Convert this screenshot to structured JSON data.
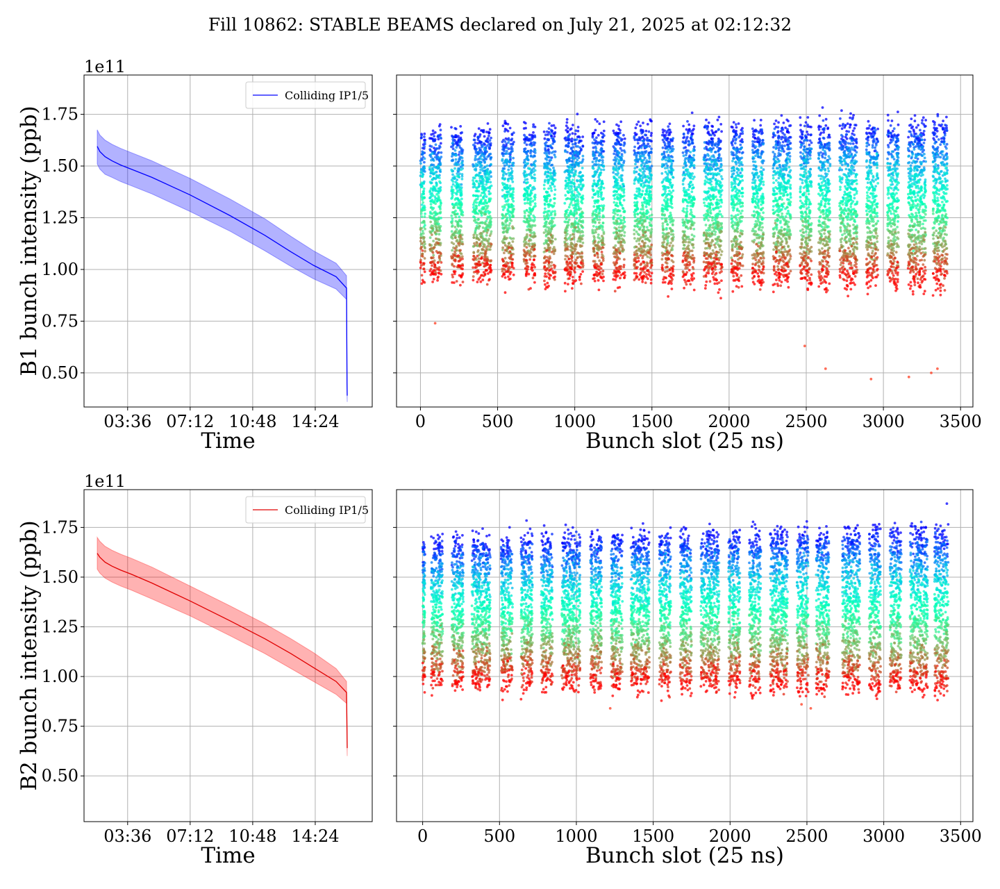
{
  "figure": {
    "title": "Fill 10862: STABLE BEAMS declared on July 21, 2025 at 02:12:32"
  },
  "chart_data": [
    {
      "id": "b1_time",
      "type": "line",
      "title": "",
      "xlabel": "Time",
      "ylabel": "B1 bunch intensity (ppb)",
      "y_offset_label": "1e11",
      "x_unit": "hours since 00:00 on July 21, 2025",
      "xlim": [
        1.09,
        17.68
      ],
      "ylim": [
        0.335,
        1.94
      ],
      "xticks": [
        3.6,
        7.2,
        10.8,
        14.4
      ],
      "xticklabels": [
        "03:36",
        "07:12",
        "10:48",
        "14:24"
      ],
      "yticks": [
        0.5,
        0.75,
        1.0,
        1.25,
        1.5,
        1.75
      ],
      "yticklabels": [
        "0.50",
        "0.75",
        "1.00",
        "1.25",
        "1.50",
        "1.75"
      ],
      "grid": true,
      "legend": {
        "position": "upper right",
        "entries": [
          "Colliding IP1/5"
        ]
      },
      "series": [
        {
          "name": "Colliding IP1/5",
          "color": "#0000ff",
          "band_color": "#0000ff",
          "band_opacity": 0.3,
          "x": [
            1.85,
            2.0,
            2.3,
            2.7,
            3.2,
            3.8,
            5.0,
            7.2,
            9.5,
            11.5,
            13.0,
            14.3,
            15.6,
            16.2,
            16.23,
            16.24
          ],
          "mean": [
            1.595,
            1.57,
            1.545,
            1.525,
            1.505,
            1.485,
            1.445,
            1.36,
            1.26,
            1.165,
            1.085,
            1.02,
            0.965,
            0.91,
            0.45,
            0.39
          ],
          "lower": [
            1.51,
            1.485,
            1.46,
            1.445,
            1.425,
            1.405,
            1.365,
            1.28,
            1.185,
            1.09,
            1.015,
            0.955,
            0.905,
            0.855,
            0.4,
            0.36
          ],
          "upper": [
            1.675,
            1.65,
            1.625,
            1.605,
            1.585,
            1.565,
            1.525,
            1.44,
            1.34,
            1.245,
            1.16,
            1.09,
            1.03,
            0.97,
            0.55,
            0.43
          ]
        }
      ]
    },
    {
      "id": "b1_slots",
      "type": "scatter",
      "title": "",
      "xlabel": "Bunch slot (25 ns)",
      "ylabel": "",
      "xlim": [
        -155,
        3580
      ],
      "ylim": [
        0.335,
        1.94
      ],
      "xticks": [
        0,
        500,
        1000,
        1500,
        2000,
        2500,
        3000,
        3500
      ],
      "xticklabels": [
        "0",
        "500",
        "1000",
        "1500",
        "2000",
        "2500",
        "3000",
        "3500"
      ],
      "yticks": [
        0.5,
        0.75,
        1.0,
        1.25,
        1.5,
        1.75
      ],
      "grid": true,
      "colormap": "rainbow",
      "color_encodes": "time (early = violet, late = red)",
      "trains": [
        [
          0,
          30
        ],
        [
          60,
          135
        ],
        [
          200,
          275
        ],
        [
          340,
          460
        ],
        [
          530,
          605
        ],
        [
          670,
          745
        ],
        [
          800,
          875
        ],
        [
          935,
          1055
        ],
        [
          1115,
          1190
        ],
        [
          1250,
          1325
        ],
        [
          1385,
          1500
        ],
        [
          1565,
          1640
        ],
        [
          1700,
          1775
        ],
        [
          1835,
          1955
        ],
        [
          2015,
          2090
        ],
        [
          2150,
          2225
        ],
        [
          2285,
          2400
        ],
        [
          2460,
          2535
        ],
        [
          2580,
          2655
        ],
        [
          2715,
          2830
        ],
        [
          2890,
          2965
        ],
        [
          3025,
          3100
        ],
        [
          3160,
          3275
        ],
        [
          3320,
          3415
        ]
      ],
      "band_top": [
        1.64,
        1.68
      ],
      "band_bottom": [
        0.98,
        0.95
      ],
      "outliers": [
        [
          95,
          0.74
        ],
        [
          2490,
          0.63
        ],
        [
          2625,
          0.52
        ],
        [
          2920,
          0.47
        ],
        [
          3165,
          0.48
        ],
        [
          3310,
          0.5
        ],
        [
          3350,
          0.52
        ]
      ]
    },
    {
      "id": "b2_time",
      "type": "line",
      "title": "",
      "xlabel": "Time",
      "ylabel": "B2 bunch intensity (ppb)",
      "y_offset_label": "1e11",
      "x_unit": "hours since 00:00 on July 21, 2025",
      "xlim": [
        1.09,
        17.68
      ],
      "ylim": [
        0.27,
        1.94
      ],
      "xticks": [
        3.6,
        7.2,
        10.8,
        14.4
      ],
      "xticklabels": [
        "03:36",
        "07:12",
        "10:48",
        "14:24"
      ],
      "yticks": [
        0.5,
        0.75,
        1.0,
        1.25,
        1.5,
        1.75
      ],
      "yticklabels": [
        "0.50",
        "0.75",
        "1.00",
        "1.25",
        "1.50",
        "1.75"
      ],
      "grid": true,
      "legend": {
        "position": "upper right",
        "entries": [
          "Colliding IP1/5"
        ]
      },
      "series": [
        {
          "name": "Colliding IP1/5",
          "color": "#e00000",
          "band_color": "#ff0000",
          "band_opacity": 0.3,
          "x": [
            1.85,
            2.0,
            2.3,
            2.7,
            3.2,
            3.8,
            5.0,
            7.2,
            9.5,
            11.5,
            13.0,
            14.3,
            15.6,
            16.2,
            16.23,
            16.24
          ],
          "mean": [
            1.62,
            1.6,
            1.575,
            1.555,
            1.535,
            1.515,
            1.47,
            1.38,
            1.28,
            1.19,
            1.115,
            1.045,
            0.975,
            0.92,
            0.72,
            0.64
          ],
          "lower": [
            1.54,
            1.52,
            1.495,
            1.475,
            1.455,
            1.435,
            1.39,
            1.305,
            1.205,
            1.115,
            1.04,
            0.975,
            0.91,
            0.865,
            0.65,
            0.6
          ],
          "upper": [
            1.7,
            1.68,
            1.655,
            1.635,
            1.615,
            1.595,
            1.55,
            1.455,
            1.355,
            1.265,
            1.19,
            1.12,
            1.04,
            0.975,
            0.8,
            0.68
          ]
        }
      ]
    },
    {
      "id": "b2_slots",
      "type": "scatter",
      "title": "",
      "xlabel": "Bunch slot (25 ns)",
      "ylabel": "",
      "xlim": [
        -170,
        3580
      ],
      "ylim": [
        0.27,
        1.94
      ],
      "xticks": [
        0,
        500,
        1000,
        1500,
        2000,
        2500,
        3000,
        3500
      ],
      "xticklabels": [
        "0",
        "500",
        "1000",
        "1500",
        "2000",
        "2500",
        "3000",
        "3500"
      ],
      "yticks": [
        0.5,
        0.75,
        1.0,
        1.25,
        1.5,
        1.75
      ],
      "grid": true,
      "colormap": "rainbow",
      "color_encodes": "time (early = violet, late = red)",
      "trains": [
        [
          0,
          15
        ],
        [
          55,
          130
        ],
        [
          190,
          265
        ],
        [
          320,
          440
        ],
        [
          510,
          585
        ],
        [
          640,
          715
        ],
        [
          770,
          845
        ],
        [
          905,
          1025
        ],
        [
          1090,
          1165
        ],
        [
          1225,
          1300
        ],
        [
          1355,
          1475
        ],
        [
          1540,
          1615
        ],
        [
          1675,
          1750
        ],
        [
          1810,
          1930
        ],
        [
          1990,
          2065
        ],
        [
          2125,
          2200
        ],
        [
          2260,
          2375
        ],
        [
          2435,
          2510
        ],
        [
          2560,
          2645
        ],
        [
          2730,
          2845
        ],
        [
          2905,
          2980
        ],
        [
          3040,
          3115
        ],
        [
          3170,
          3285
        ],
        [
          3330,
          3420
        ]
      ],
      "band_top": [
        1.66,
        1.72
      ],
      "band_bottom": [
        0.98,
        0.95
      ],
      "outliers": [
        [
          1220,
          0.84
        ],
        [
          2525,
          0.84
        ],
        [
          2465,
          0.86
        ]
      ]
    }
  ]
}
